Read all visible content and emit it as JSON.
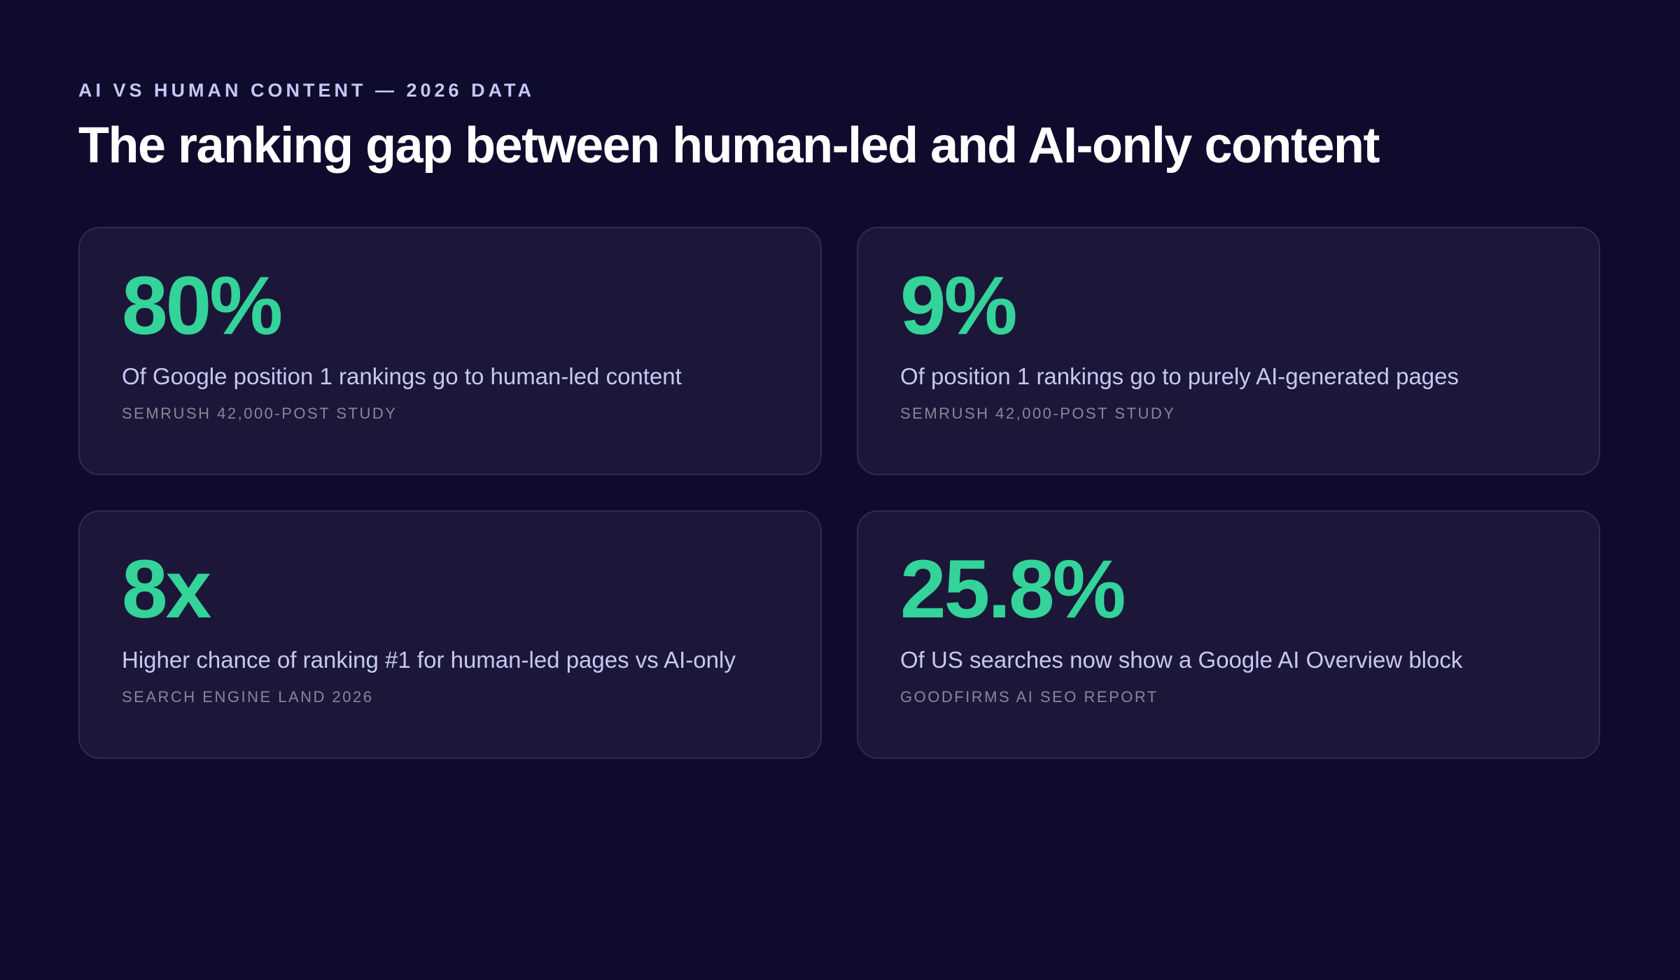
{
  "header": {
    "eyebrow": "AI VS HUMAN CONTENT — 2026 DATA",
    "title": "The ranking gap between human-led and AI-only content"
  },
  "stats": [
    {
      "value": "80%",
      "description": "Of Google position 1 rankings go to human-led content",
      "source": "SEMRUSH 42,000-POST STUDY"
    },
    {
      "value": "9%",
      "description": "Of position 1 rankings go to purely AI-generated pages",
      "source": "SEMRUSH 42,000-POST STUDY"
    },
    {
      "value": "8x",
      "description": "Higher chance of ranking #1 for human-led pages vs AI-only",
      "source": "SEARCH ENGINE LAND 2026"
    },
    {
      "value": "25.8%",
      "description": "Of US searches now show a Google AI Overview block",
      "source": "GOODFIRMS AI SEO REPORT"
    }
  ],
  "colors": {
    "background": "#0f0b2c",
    "card": "#1c1738",
    "accent": "#34d399",
    "eyebrow": "#c4c6f6",
    "description": "#c5c8f4",
    "source": "#8a8597"
  }
}
